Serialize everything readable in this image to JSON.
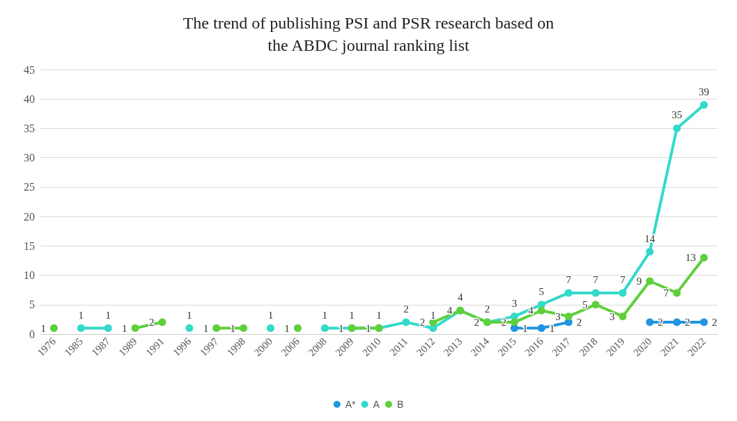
{
  "chart_data": {
    "type": "line",
    "title": "The trend of publishing PSI and PSR research based on\nthe ABDC journal ranking list",
    "categories": [
      "1976",
      "1985",
      "1987",
      "1989",
      "1991",
      "1996",
      "1997",
      "1998",
      "2000",
      "2006",
      "2008",
      "2009",
      "2010",
      "2011",
      "2012",
      "2013",
      "2014",
      "2015",
      "2016",
      "2017",
      "2018",
      "2019",
      "2020",
      "2021",
      "2022"
    ],
    "series": [
      {
        "name": "A*",
        "color": "#1f94e0",
        "values": [
          null,
          null,
          null,
          null,
          null,
          null,
          null,
          null,
          null,
          null,
          null,
          null,
          null,
          null,
          null,
          null,
          null,
          1,
          1,
          2,
          null,
          null,
          2,
          2,
          2
        ]
      },
      {
        "name": "A",
        "color": "#33d9c9",
        "values": [
          null,
          1,
          1,
          null,
          null,
          1,
          null,
          null,
          1,
          null,
          1,
          1,
          1,
          2,
          1,
          4,
          2,
          3,
          5,
          7,
          7,
          7,
          14,
          35,
          39
        ]
      },
      {
        "name": "B",
        "color": "#5fcf3c",
        "values": [
          1,
          null,
          null,
          1,
          2,
          null,
          1,
          1,
          null,
          1,
          null,
          1,
          1,
          null,
          2,
          4,
          2,
          2,
          4,
          3,
          5,
          3,
          9,
          7,
          13
        ]
      }
    ],
    "ylim": [
      0,
      45
    ],
    "yticks": [
      0,
      5,
      10,
      15,
      20,
      25,
      30,
      35,
      40,
      45
    ],
    "grid": "y",
    "legend": "bottom",
    "marker": "circle",
    "line_style": "solid",
    "data_labels": true
  }
}
